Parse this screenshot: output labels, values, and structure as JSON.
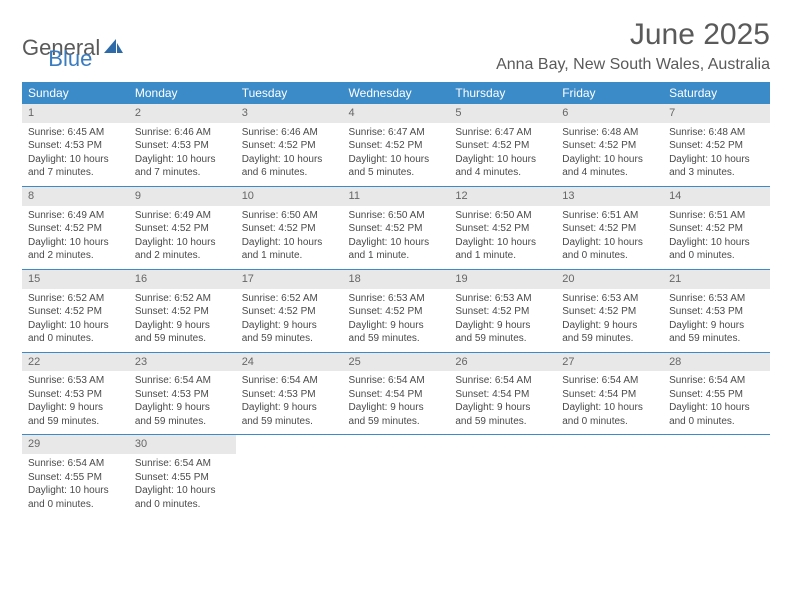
{
  "logo": {
    "text1": "General",
    "text2": "Blue"
  },
  "title": "June 2025",
  "location": "Anna Bay, New South Wales, Australia",
  "colors": {
    "header_bg": "#3b8bc9",
    "header_text": "#ffffff",
    "daynum_bg": "#e8e8e8",
    "border": "#3b8bc9",
    "text": "#4a4a4a",
    "title": "#5a5a5a"
  },
  "day_labels": [
    "Sunday",
    "Monday",
    "Tuesday",
    "Wednesday",
    "Thursday",
    "Friday",
    "Saturday"
  ],
  "weeks": [
    [
      {
        "n": "1",
        "sr": "Sunrise: 6:45 AM",
        "ss": "Sunset: 4:53 PM",
        "d1": "Daylight: 10 hours",
        "d2": "and 7 minutes."
      },
      {
        "n": "2",
        "sr": "Sunrise: 6:46 AM",
        "ss": "Sunset: 4:53 PM",
        "d1": "Daylight: 10 hours",
        "d2": "and 7 minutes."
      },
      {
        "n": "3",
        "sr": "Sunrise: 6:46 AM",
        "ss": "Sunset: 4:52 PM",
        "d1": "Daylight: 10 hours",
        "d2": "and 6 minutes."
      },
      {
        "n": "4",
        "sr": "Sunrise: 6:47 AM",
        "ss": "Sunset: 4:52 PM",
        "d1": "Daylight: 10 hours",
        "d2": "and 5 minutes."
      },
      {
        "n": "5",
        "sr": "Sunrise: 6:47 AM",
        "ss": "Sunset: 4:52 PM",
        "d1": "Daylight: 10 hours",
        "d2": "and 4 minutes."
      },
      {
        "n": "6",
        "sr": "Sunrise: 6:48 AM",
        "ss": "Sunset: 4:52 PM",
        "d1": "Daylight: 10 hours",
        "d2": "and 4 minutes."
      },
      {
        "n": "7",
        "sr": "Sunrise: 6:48 AM",
        "ss": "Sunset: 4:52 PM",
        "d1": "Daylight: 10 hours",
        "d2": "and 3 minutes."
      }
    ],
    [
      {
        "n": "8",
        "sr": "Sunrise: 6:49 AM",
        "ss": "Sunset: 4:52 PM",
        "d1": "Daylight: 10 hours",
        "d2": "and 2 minutes."
      },
      {
        "n": "9",
        "sr": "Sunrise: 6:49 AM",
        "ss": "Sunset: 4:52 PM",
        "d1": "Daylight: 10 hours",
        "d2": "and 2 minutes."
      },
      {
        "n": "10",
        "sr": "Sunrise: 6:50 AM",
        "ss": "Sunset: 4:52 PM",
        "d1": "Daylight: 10 hours",
        "d2": "and 1 minute."
      },
      {
        "n": "11",
        "sr": "Sunrise: 6:50 AM",
        "ss": "Sunset: 4:52 PM",
        "d1": "Daylight: 10 hours",
        "d2": "and 1 minute."
      },
      {
        "n": "12",
        "sr": "Sunrise: 6:50 AM",
        "ss": "Sunset: 4:52 PM",
        "d1": "Daylight: 10 hours",
        "d2": "and 1 minute."
      },
      {
        "n": "13",
        "sr": "Sunrise: 6:51 AM",
        "ss": "Sunset: 4:52 PM",
        "d1": "Daylight: 10 hours",
        "d2": "and 0 minutes."
      },
      {
        "n": "14",
        "sr": "Sunrise: 6:51 AM",
        "ss": "Sunset: 4:52 PM",
        "d1": "Daylight: 10 hours",
        "d2": "and 0 minutes."
      }
    ],
    [
      {
        "n": "15",
        "sr": "Sunrise: 6:52 AM",
        "ss": "Sunset: 4:52 PM",
        "d1": "Daylight: 10 hours",
        "d2": "and 0 minutes."
      },
      {
        "n": "16",
        "sr": "Sunrise: 6:52 AM",
        "ss": "Sunset: 4:52 PM",
        "d1": "Daylight: 9 hours",
        "d2": "and 59 minutes."
      },
      {
        "n": "17",
        "sr": "Sunrise: 6:52 AM",
        "ss": "Sunset: 4:52 PM",
        "d1": "Daylight: 9 hours",
        "d2": "and 59 minutes."
      },
      {
        "n": "18",
        "sr": "Sunrise: 6:53 AM",
        "ss": "Sunset: 4:52 PM",
        "d1": "Daylight: 9 hours",
        "d2": "and 59 minutes."
      },
      {
        "n": "19",
        "sr": "Sunrise: 6:53 AM",
        "ss": "Sunset: 4:52 PM",
        "d1": "Daylight: 9 hours",
        "d2": "and 59 minutes."
      },
      {
        "n": "20",
        "sr": "Sunrise: 6:53 AM",
        "ss": "Sunset: 4:52 PM",
        "d1": "Daylight: 9 hours",
        "d2": "and 59 minutes."
      },
      {
        "n": "21",
        "sr": "Sunrise: 6:53 AM",
        "ss": "Sunset: 4:53 PM",
        "d1": "Daylight: 9 hours",
        "d2": "and 59 minutes."
      }
    ],
    [
      {
        "n": "22",
        "sr": "Sunrise: 6:53 AM",
        "ss": "Sunset: 4:53 PM",
        "d1": "Daylight: 9 hours",
        "d2": "and 59 minutes."
      },
      {
        "n": "23",
        "sr": "Sunrise: 6:54 AM",
        "ss": "Sunset: 4:53 PM",
        "d1": "Daylight: 9 hours",
        "d2": "and 59 minutes."
      },
      {
        "n": "24",
        "sr": "Sunrise: 6:54 AM",
        "ss": "Sunset: 4:53 PM",
        "d1": "Daylight: 9 hours",
        "d2": "and 59 minutes."
      },
      {
        "n": "25",
        "sr": "Sunrise: 6:54 AM",
        "ss": "Sunset: 4:54 PM",
        "d1": "Daylight: 9 hours",
        "d2": "and 59 minutes."
      },
      {
        "n": "26",
        "sr": "Sunrise: 6:54 AM",
        "ss": "Sunset: 4:54 PM",
        "d1": "Daylight: 9 hours",
        "d2": "and 59 minutes."
      },
      {
        "n": "27",
        "sr": "Sunrise: 6:54 AM",
        "ss": "Sunset: 4:54 PM",
        "d1": "Daylight: 10 hours",
        "d2": "and 0 minutes."
      },
      {
        "n": "28",
        "sr": "Sunrise: 6:54 AM",
        "ss": "Sunset: 4:55 PM",
        "d1": "Daylight: 10 hours",
        "d2": "and 0 minutes."
      }
    ],
    [
      {
        "n": "29",
        "sr": "Sunrise: 6:54 AM",
        "ss": "Sunset: 4:55 PM",
        "d1": "Daylight: 10 hours",
        "d2": "and 0 minutes."
      },
      {
        "n": "30",
        "sr": "Sunrise: 6:54 AM",
        "ss": "Sunset: 4:55 PM",
        "d1": "Daylight: 10 hours",
        "d2": "and 0 minutes."
      },
      null,
      null,
      null,
      null,
      null
    ]
  ]
}
